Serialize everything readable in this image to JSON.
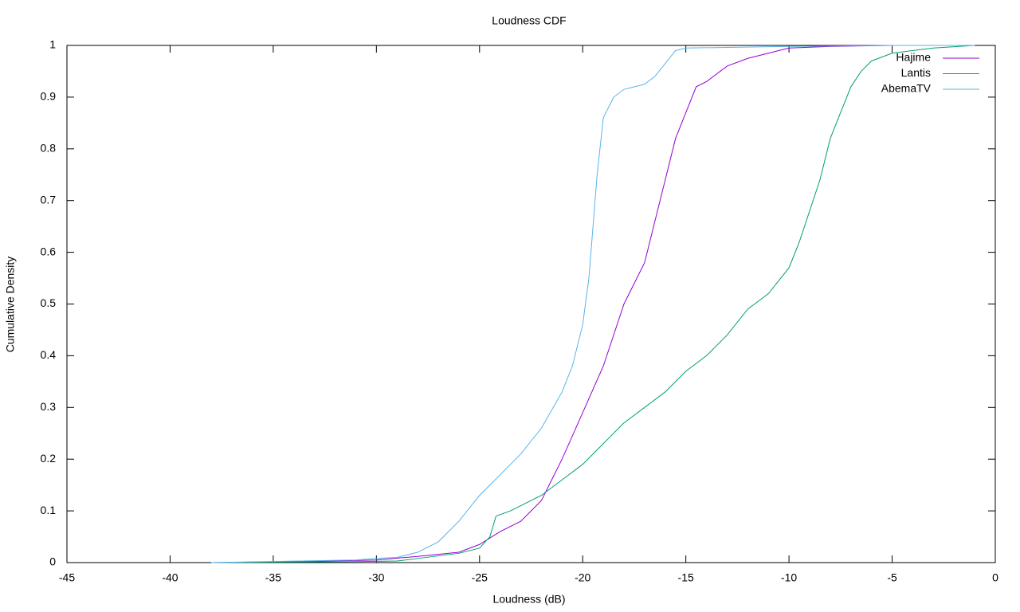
{
  "chart_data": {
    "type": "line",
    "title": "Loudness CDF",
    "x_label": "Loudness (dB)",
    "y_label": "Cumulative Density",
    "xlim": [
      -45,
      0
    ],
    "xticks": [
      -45,
      -40,
      -35,
      -30,
      -25,
      -20,
      -15,
      -10,
      -5,
      0
    ],
    "ylim": [
      0,
      1
    ],
    "yticks": [
      0,
      0.1,
      0.2,
      0.3,
      0.4,
      0.5,
      0.6,
      0.7,
      0.8,
      0.9,
      1
    ],
    "grid": false,
    "legend": "top-right",
    "series": [
      {
        "name": "Hajime",
        "color": "#9400d3",
        "x": [
          -38,
          -31,
          -30,
          -28,
          -26,
          -25,
          -24,
          -23,
          -22,
          -21.5,
          -21,
          -20,
          -19,
          -18,
          -17,
          -16.5,
          -16,
          -15.5,
          -15,
          -14.5,
          -14,
          -13,
          -12,
          -11,
          -10,
          -8,
          -5,
          -1
        ],
        "values": [
          0,
          0.004,
          0.005,
          0.012,
          0.02,
          0.035,
          0.06,
          0.08,
          0.12,
          0.16,
          0.2,
          0.29,
          0.38,
          0.5,
          0.58,
          0.66,
          0.74,
          0.82,
          0.87,
          0.92,
          0.93,
          0.96,
          0.975,
          0.985,
          0.995,
          0.998,
          1,
          1
        ]
      },
      {
        "name": "Lantis",
        "color": "#009e73",
        "x": [
          -38,
          -31,
          -29,
          -28,
          -26,
          -25,
          -24.5,
          -24.2,
          -23.5,
          -23,
          -22,
          -21,
          -20,
          -19,
          -18,
          -17,
          -16,
          -15,
          -14,
          -13,
          -12,
          -11,
          -10,
          -9.5,
          -9,
          -8.5,
          -8,
          -7.5,
          -7,
          -6.5,
          -6,
          -5,
          -3,
          -1
        ],
        "values": [
          0,
          0.002,
          0.003,
          0.008,
          0.018,
          0.028,
          0.05,
          0.09,
          0.1,
          0.11,
          0.13,
          0.16,
          0.19,
          0.23,
          0.27,
          0.3,
          0.33,
          0.37,
          0.4,
          0.44,
          0.49,
          0.52,
          0.57,
          0.62,
          0.68,
          0.74,
          0.82,
          0.87,
          0.92,
          0.95,
          0.97,
          0.985,
          0.995,
          1
        ]
      },
      {
        "name": "AbemaTV",
        "color": "#56b4e9",
        "x": [
          -38,
          -31,
          -30,
          -29,
          -28,
          -27,
          -26,
          -25,
          -24,
          -23,
          -22,
          -21,
          -20.5,
          -20,
          -19.7,
          -19.5,
          -19.3,
          -19,
          -18.5,
          -18,
          -17,
          -16.5,
          -16,
          -15.5,
          -15,
          -10,
          -5,
          -1
        ],
        "values": [
          0,
          0.005,
          0.008,
          0.01,
          0.02,
          0.04,
          0.08,
          0.13,
          0.17,
          0.21,
          0.26,
          0.33,
          0.38,
          0.46,
          0.55,
          0.65,
          0.75,
          0.86,
          0.9,
          0.915,
          0.925,
          0.94,
          0.965,
          0.99,
          0.995,
          0.998,
          1,
          1
        ]
      }
    ]
  }
}
